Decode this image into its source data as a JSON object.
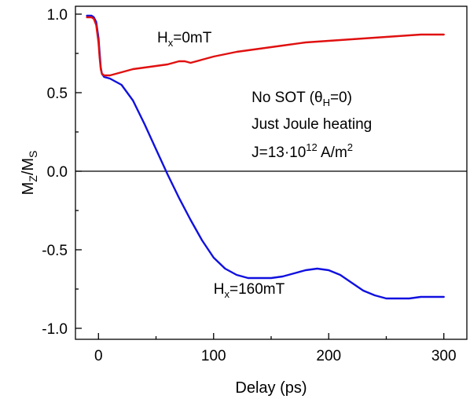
{
  "chart_data": {
    "type": "line",
    "xlabel": "Delay (ps)",
    "ylabel": {
      "base1": "M",
      "sub1": "Z",
      "mid": "/M",
      "sub2": "S"
    },
    "xlim": [
      -20,
      320
    ],
    "ylim": [
      -1.07,
      1.05
    ],
    "x_ticks": [
      0,
      100,
      200,
      300
    ],
    "x_tick_labels": [
      "0",
      "100",
      "200",
      "300"
    ],
    "y_ticks": [
      1.0,
      0.5,
      0.0,
      -0.5,
      -1.0
    ],
    "y_tick_labels": [
      "1.0",
      "0.5",
      "0.0",
      "-0.5",
      "-1.0"
    ],
    "zero_line": 0,
    "series": [
      {
        "name": "Hx=160mT",
        "color": "#1010e0",
        "x": [
          -10,
          -6,
          -4,
          -2,
          0,
          1,
          2,
          3,
          5,
          10,
          20,
          30,
          40,
          50,
          60,
          70,
          80,
          90,
          100,
          110,
          120,
          130,
          140,
          150,
          160,
          170,
          180,
          190,
          200,
          210,
          220,
          230,
          240,
          250,
          260,
          270,
          280,
          290,
          300
        ],
        "y": [
          0.99,
          0.99,
          0.98,
          0.95,
          0.85,
          0.75,
          0.66,
          0.62,
          0.6,
          0.59,
          0.55,
          0.45,
          0.3,
          0.14,
          -0.02,
          -0.17,
          -0.31,
          -0.44,
          -0.55,
          -0.62,
          -0.66,
          -0.68,
          -0.68,
          -0.68,
          -0.67,
          -0.65,
          -0.63,
          -0.62,
          -0.63,
          -0.66,
          -0.71,
          -0.76,
          -0.79,
          -0.81,
          -0.81,
          -0.81,
          -0.8,
          -0.8,
          -0.8
        ]
      },
      {
        "name": "Hx=0mT",
        "color": "#e01010",
        "x": [
          -10,
          -6,
          -4,
          -2,
          0,
          1,
          2,
          3,
          5,
          10,
          20,
          30,
          40,
          50,
          60,
          70,
          75,
          80,
          90,
          100,
          120,
          140,
          160,
          180,
          200,
          220,
          240,
          260,
          280,
          300
        ],
        "y": [
          0.98,
          0.98,
          0.97,
          0.93,
          0.82,
          0.72,
          0.65,
          0.62,
          0.61,
          0.61,
          0.63,
          0.65,
          0.66,
          0.67,
          0.68,
          0.7,
          0.7,
          0.69,
          0.71,
          0.73,
          0.76,
          0.78,
          0.8,
          0.82,
          0.83,
          0.84,
          0.85,
          0.86,
          0.87,
          0.87
        ]
      }
    ],
    "annotations": {
      "h0": {
        "base": "H",
        "sub": "x",
        "rest": "=0mT",
        "x": 51,
        "y": 0.82
      },
      "h160": {
        "base": "H",
        "sub": "x",
        "rest": "=160mT",
        "x": 100,
        "y": -0.78
      },
      "nosot": {
        "a": "No SOT (",
        "theta": "θ",
        "sub": "H",
        "b": "=0)",
        "x": 133,
        "y": 0.44
      },
      "joule": {
        "text": "Just Joule heating",
        "x": 133,
        "y": 0.27
      },
      "current": {
        "a": "J=13·10",
        "sup1": "12",
        "b": " A/m",
        "sup2": "2",
        "x": 133,
        "y": 0.09
      }
    }
  }
}
